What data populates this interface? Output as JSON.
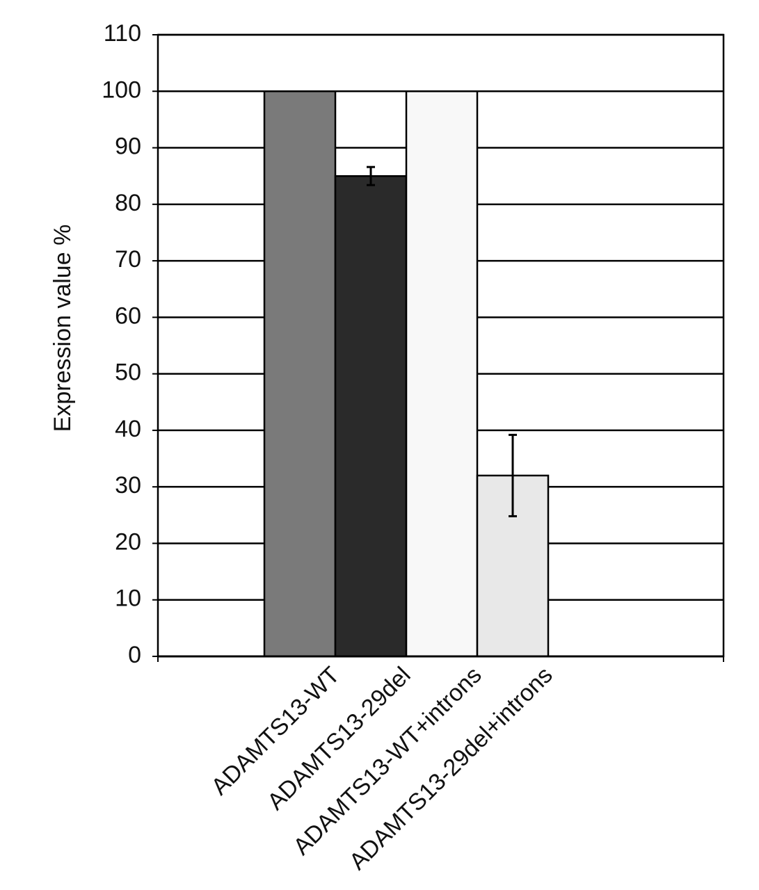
{
  "chart_data": {
    "type": "bar",
    "y_label": "Expression value %",
    "categories": [
      "ADAMTS13-WT",
      "ADAMTS13-29del",
      "ADAMTS13-WT+introns",
      "ADAMTS13-29del+introns"
    ],
    "values": [
      100,
      85,
      100,
      32
    ],
    "errors": [
      null,
      1.6,
      null,
      7.2
    ],
    "colors": [
      "#7a7a7a",
      "#2a2a2a",
      "#f8f8f8",
      "#e8e8e8"
    ],
    "ylim": [
      0,
      110
    ],
    "yticks": [
      0,
      10,
      20,
      30,
      40,
      50,
      60,
      70,
      80,
      90,
      100,
      110
    ],
    "grid": true
  }
}
